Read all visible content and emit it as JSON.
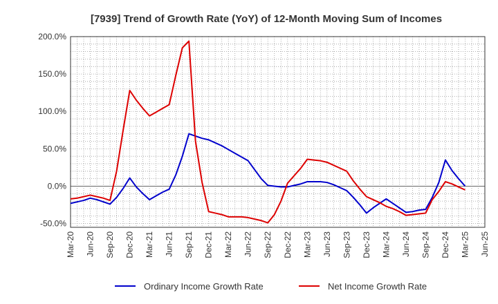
{
  "chart_data": {
    "type": "line",
    "title": "[7939]  Trend of Growth Rate (YoY) of 12-Month Moving Sum of Incomes",
    "xlabel": "",
    "ylabel": "",
    "ylim": [
      -55,
      200
    ],
    "grid": true,
    "legend_position": "bottom",
    "x_tick_labels": [
      "Mar-20",
      "Jun-20",
      "Sep-20",
      "Dec-20",
      "Mar-21",
      "Jun-21",
      "Sep-21",
      "Dec-21",
      "Mar-22",
      "Jun-22",
      "Sep-22",
      "Dec-22",
      "Mar-23",
      "Jun-23",
      "Sep-23",
      "Dec-23",
      "Mar-24",
      "Jun-24",
      "Sep-24",
      "Dec-24",
      "Mar-25",
      "Jun-25"
    ],
    "y_ticks": [
      -50,
      0,
      50,
      100,
      150,
      200
    ],
    "y_tick_labels": [
      "-50.0%",
      "0.0%",
      "50.0%",
      "100.0%",
      "150.0%",
      "200.0%"
    ],
    "x": [
      "Mar-20",
      "Apr-20",
      "May-20",
      "Jun-20",
      "Jul-20",
      "Aug-20",
      "Sep-20",
      "Oct-20",
      "Nov-20",
      "Dec-20",
      "Jan-21",
      "Feb-21",
      "Mar-21",
      "Apr-21",
      "May-21",
      "Jun-21",
      "Jul-21",
      "Aug-21",
      "Sep-21",
      "Oct-21",
      "Nov-21",
      "Dec-21",
      "Jan-22",
      "Feb-22",
      "Mar-22",
      "Apr-22",
      "May-22",
      "Jun-22",
      "Jul-22",
      "Aug-22",
      "Sep-22",
      "Oct-22",
      "Nov-22",
      "Dec-22",
      "Jan-23",
      "Feb-23",
      "Mar-23",
      "Apr-23",
      "May-23",
      "Jun-23",
      "Jul-23",
      "Aug-23",
      "Sep-23",
      "Oct-23",
      "Nov-23",
      "Dec-23",
      "Jan-24",
      "Feb-24",
      "Mar-24",
      "Apr-24",
      "May-24",
      "Jun-24",
      "Jul-24",
      "Aug-24",
      "Sep-24",
      "Oct-24",
      "Nov-24",
      "Dec-24",
      "Jan-25",
      "Feb-25",
      "Mar-25"
    ],
    "series": [
      {
        "name": "Ordinary Income Growth Rate",
        "color": "#0000cc",
        "values": [
          -23,
          -21,
          -19,
          -16,
          -18,
          -21,
          -24,
          -15,
          -3,
          11,
          -1,
          -10,
          -18,
          -13,
          -8,
          -4,
          15,
          40,
          70,
          67,
          64,
          62,
          58,
          54,
          49,
          44,
          39,
          34,
          22,
          10,
          1,
          0,
          -1,
          -1,
          1,
          3,
          6,
          6,
          6,
          5,
          2,
          -2,
          -6,
          -15,
          -25,
          -36,
          -29,
          -23,
          -17,
          -23,
          -29,
          -35,
          -34,
          -32,
          -31,
          -15,
          5,
          35,
          21,
          10,
          0
        ]
      },
      {
        "name": "Net Income Growth Rate",
        "color": "#dd0000",
        "values": [
          -17,
          -16,
          -14,
          -12,
          -14,
          -16,
          -19,
          20,
          75,
          128,
          115,
          104,
          94,
          99,
          104,
          109,
          148,
          185,
          194,
          60,
          5,
          -34,
          -36,
          -38,
          -41,
          -41,
          -41,
          -42,
          -44,
          -46,
          -49,
          -38,
          -20,
          4,
          14,
          24,
          36,
          35,
          34,
          32,
          28,
          24,
          20,
          7,
          -4,
          -14,
          -18,
          -22,
          -27,
          -30,
          -34,
          -39,
          -38,
          -37,
          -36,
          -18,
          -7,
          6,
          3,
          -1,
          -5
        ]
      }
    ]
  }
}
